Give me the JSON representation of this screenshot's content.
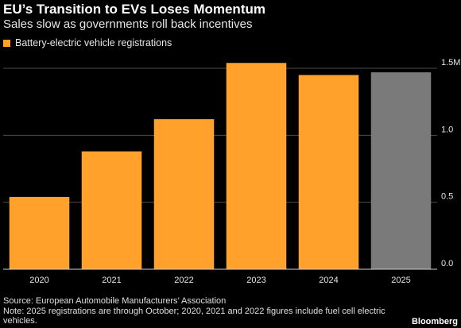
{
  "title": "EU’s Transition to EVs Loses Momentum",
  "subtitle": "Sales slow as governments roll back incentives",
  "legend": {
    "label": "Battery-electric vehicle registrations"
  },
  "colors": {
    "series": "#ffa12b",
    "estimate": "#7a7a7a",
    "background": "#000000",
    "grid": "#4d4d4d"
  },
  "chart_data": {
    "type": "bar",
    "categories": [
      "2020",
      "2021",
      "2022",
      "2023",
      "2024",
      "2025"
    ],
    "series": [
      {
        "name": "Battery-electric vehicle registrations",
        "values": [
          0.54,
          0.88,
          1.12,
          1.54,
          1.45,
          1.47
        ]
      }
    ],
    "highlight_last_bar": true,
    "ylim": [
      0,
      1.5
    ],
    "yticks": [
      0.0,
      0.5,
      1.0,
      1.5
    ],
    "ytick_labels": [
      "0.0",
      "0.5",
      "1.0",
      "1.5M"
    ],
    "y_axis_position": "right",
    "grid": true,
    "legend_position": "top-left"
  },
  "footer": {
    "source": "Source: European Automobile Manufacturers’ Association",
    "note": "Note: 2025 registrations are through October; 2020, 2021 and 2022 figures include fuel cell electric vehicles.",
    "brand": "Bloomberg"
  }
}
